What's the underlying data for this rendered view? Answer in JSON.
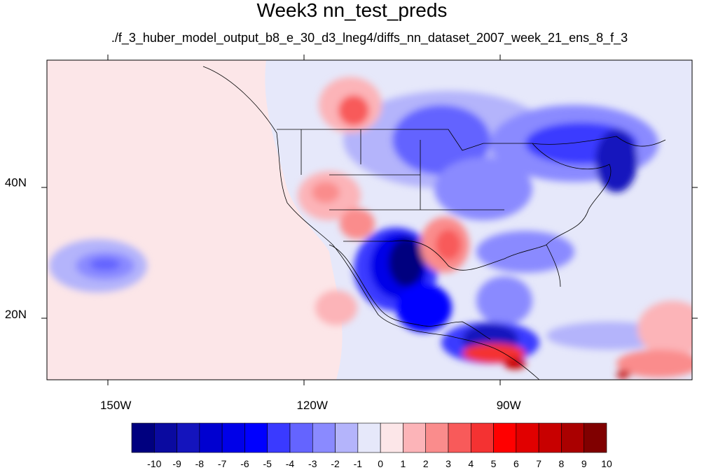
{
  "title": "Week3 nn_test_preds",
  "subtitle": "./f_3_huber_model_output_b8_e_30_d3_lneg4/diffs_nn_dataset_2007_week_21_ens_8_f_3",
  "map": {
    "lon_range": [
      -160.5,
      -62
    ],
    "lat_range": [
      10,
      58.5
    ],
    "lon_ticks": [
      {
        "value": -150,
        "label": "150W"
      },
      {
        "value": -120,
        "label": "120W"
      },
      {
        "value": -90,
        "label": "90W"
      }
    ],
    "lat_ticks": [
      {
        "value": 40,
        "label": "40N"
      },
      {
        "value": 20,
        "label": "20N"
      }
    ]
  },
  "colorbar": {
    "labels": [
      "-10",
      "-9",
      "-8",
      "-7",
      "-6",
      "-5",
      "-4",
      "-3",
      "-2",
      "-1",
      "0",
      "1",
      "2",
      "3",
      "4",
      "5",
      "6",
      "7",
      "8",
      "9",
      "10"
    ],
    "colors": [
      "#00007f",
      "#0a0aa0",
      "#1414bd",
      "#0000d0",
      "#0000e8",
      "#0000ff",
      "#3a3aff",
      "#6464ff",
      "#8a8aff",
      "#b4b4fb",
      "#e6e8fa",
      "#fce6e8",
      "#fcb4b8",
      "#fa8c8c",
      "#f85a5a",
      "#f43232",
      "#ff0000",
      "#e10000",
      "#c80000",
      "#aa0000",
      "#800000"
    ]
  }
}
